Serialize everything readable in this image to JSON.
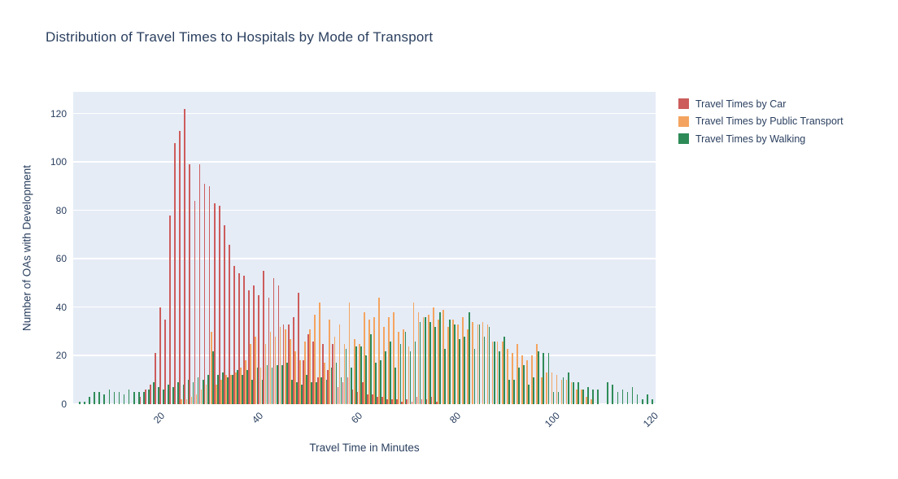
{
  "colors": {
    "text": "#2a3f5f",
    "plot_background": "#e5ecf6",
    "gridline": "#ffffff",
    "paper_background": "#ffffff"
  },
  "chart_data": {
    "type": "bar",
    "title": "Distribution of Travel Times to Hospitals by Mode of Transport",
    "xlabel": "Travel Time in Minutes",
    "ylabel": "Number of OAs with Development",
    "x_start": 4,
    "x_step": 1,
    "xlim": [
      3,
      121
    ],
    "ylim": [
      0,
      129
    ],
    "x_ticks": [
      20,
      40,
      60,
      80,
      100,
      120
    ],
    "y_ticks": [
      0,
      20,
      40,
      60,
      80,
      100,
      120
    ],
    "grid": true,
    "legend_position": "right-top",
    "series": [
      {
        "name": "Travel Times by Car",
        "color": "#CD5C5C",
        "values": [
          0,
          0,
          0,
          0,
          0,
          0,
          0,
          0,
          0,
          0,
          0,
          0,
          0,
          3,
          6,
          8,
          21,
          40,
          35,
          78,
          108,
          113,
          122,
          99,
          84,
          99,
          91,
          90,
          83,
          82,
          74,
          66,
          57,
          54,
          53,
          47,
          49,
          45,
          55,
          44,
          52,
          49,
          33,
          33,
          36,
          46,
          18,
          29,
          26,
          11,
          25,
          14,
          25,
          7,
          9,
          11,
          6,
          5,
          9,
          4,
          4,
          3,
          3,
          2,
          2,
          2,
          1,
          2,
          1,
          3,
          2,
          2,
          3,
          1,
          0,
          0,
          0,
          0,
          0,
          0,
          0,
          0,
          0,
          0,
          0,
          0,
          0,
          0,
          0,
          0,
          0,
          0,
          0,
          0,
          0,
          0,
          0,
          0,
          0,
          0,
          0,
          0,
          0,
          0,
          0,
          0,
          0,
          0,
          0,
          0,
          0,
          0,
          0,
          0,
          0,
          0,
          0
        ]
      },
      {
        "name": "Travel Times by Public Transport",
        "color": "#F4A460",
        "values": [
          0,
          0,
          0,
          0,
          0,
          0,
          0,
          0,
          0,
          0,
          0,
          0,
          0,
          0,
          0,
          0,
          0,
          0,
          0,
          0,
          0,
          2,
          2,
          3,
          4,
          6,
          8,
          30,
          8,
          10,
          12,
          12,
          13,
          15,
          18,
          25,
          28,
          15,
          25,
          30,
          28,
          32,
          31,
          27,
          22,
          18,
          26,
          31,
          37,
          42,
          17,
          35,
          28,
          33,
          25,
          42,
          27,
          25,
          38,
          35,
          36,
          44,
          32,
          36,
          38,
          30,
          31,
          24,
          42,
          38,
          36,
          37,
          40,
          35,
          39,
          32,
          35,
          33,
          36,
          31,
          34,
          33,
          34,
          33,
          26,
          26,
          26,
          23,
          21,
          25,
          20,
          18,
          20,
          25,
          11,
          13,
          13,
          12,
          10,
          10,
          9,
          6,
          6,
          3,
          2,
          0,
          0,
          0,
          0,
          0,
          0,
          0,
          0,
          0,
          0,
          0,
          0
        ]
      },
      {
        "name": "Travel Times by Walking",
        "color": "#2E8B57",
        "values": [
          1,
          1,
          3,
          5,
          5,
          4,
          6,
          5,
          5,
          4,
          6,
          5,
          5,
          5,
          6,
          9,
          7,
          6,
          8,
          7,
          9,
          8,
          10,
          9,
          11,
          10,
          12,
          22,
          12,
          13,
          11,
          12,
          14,
          12,
          14,
          10,
          15,
          10,
          16,
          15,
          16,
          16,
          17,
          10,
          9,
          8,
          12,
          9,
          9,
          11,
          10,
          15,
          17,
          11,
          23,
          15,
          24,
          24,
          20,
          29,
          17,
          18,
          22,
          26,
          15,
          25,
          30,
          22,
          26,
          34,
          36,
          34,
          32,
          38,
          23,
          35,
          33,
          27,
          28,
          38,
          23,
          33,
          28,
          32,
          26,
          22,
          28,
          10,
          10,
          15,
          16,
          8,
          11,
          22,
          21,
          21,
          5,
          5,
          11,
          13,
          9,
          9,
          6,
          7,
          6,
          6,
          0,
          9,
          8,
          5,
          6,
          5,
          7,
          4,
          2,
          4,
          2
        ]
      }
    ]
  }
}
